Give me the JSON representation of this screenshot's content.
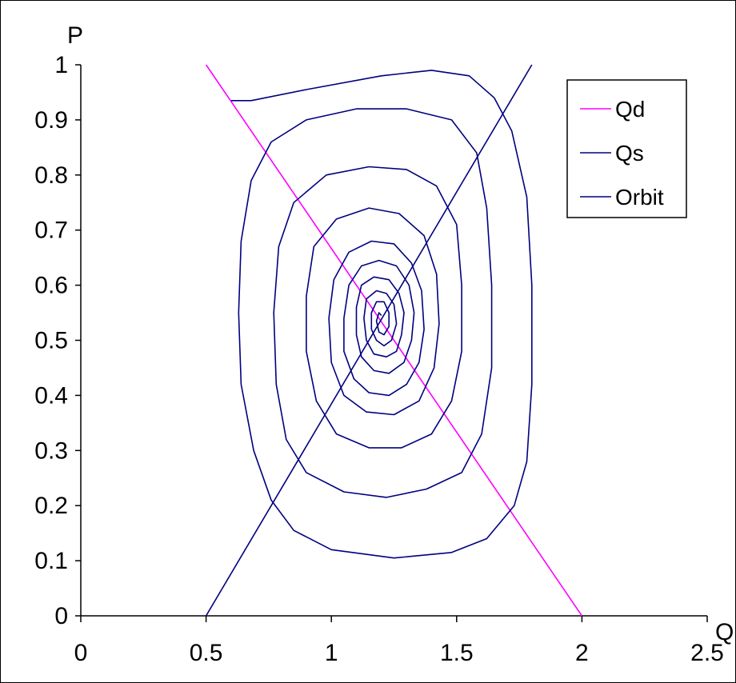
{
  "chart_data": {
    "type": "line",
    "xlabel": "Q",
    "ylabel": "P",
    "xlim": [
      0,
      2.5
    ],
    "ylim": [
      0,
      1
    ],
    "x_ticks": [
      "0",
      "0.5",
      "1",
      "1.5",
      "2",
      "2.5"
    ],
    "y_ticks": [
      "0",
      "0.1",
      "0.2",
      "0.3",
      "0.4",
      "0.5",
      "0.6",
      "0.7",
      "0.8",
      "0.9",
      "1"
    ],
    "grid": false,
    "legend_position": "top-right",
    "series": [
      {
        "name": "Qd",
        "color": "#ff00ff",
        "points": [
          [
            0.5,
            1.0
          ],
          [
            2.0,
            0.0
          ]
        ]
      },
      {
        "name": "Qs",
        "color": "#000080",
        "points": [
          [
            0.5,
            0.0
          ],
          [
            1.8,
            1.0
          ]
        ]
      },
      {
        "name": "Orbit",
        "color": "#000080",
        "points": [
          [
            0.6,
            0.935
          ],
          [
            0.68,
            0.935
          ],
          [
            0.9,
            0.955
          ],
          [
            1.2,
            0.98
          ],
          [
            1.4,
            0.99
          ],
          [
            1.55,
            0.98
          ],
          [
            1.65,
            0.94
          ],
          [
            1.72,
            0.88
          ],
          [
            1.78,
            0.76
          ],
          [
            1.8,
            0.6
          ],
          [
            1.8,
            0.42
          ],
          [
            1.78,
            0.28
          ],
          [
            1.73,
            0.2
          ],
          [
            1.62,
            0.14
          ],
          [
            1.48,
            0.115
          ],
          [
            1.25,
            0.105
          ],
          [
            1.0,
            0.12
          ],
          [
            0.85,
            0.155
          ],
          [
            0.76,
            0.21
          ],
          [
            0.69,
            0.3
          ],
          [
            0.64,
            0.42
          ],
          [
            0.63,
            0.55
          ],
          [
            0.64,
            0.68
          ],
          [
            0.68,
            0.79
          ],
          [
            0.76,
            0.86
          ],
          [
            0.9,
            0.9
          ],
          [
            1.1,
            0.92
          ],
          [
            1.3,
            0.92
          ],
          [
            1.48,
            0.9
          ],
          [
            1.58,
            0.84
          ],
          [
            1.62,
            0.74
          ],
          [
            1.64,
            0.6
          ],
          [
            1.64,
            0.45
          ],
          [
            1.6,
            0.33
          ],
          [
            1.52,
            0.26
          ],
          [
            1.38,
            0.23
          ],
          [
            1.22,
            0.215
          ],
          [
            1.05,
            0.225
          ],
          [
            0.9,
            0.26
          ],
          [
            0.82,
            0.32
          ],
          [
            0.78,
            0.42
          ],
          [
            0.77,
            0.55
          ],
          [
            0.79,
            0.67
          ],
          [
            0.85,
            0.75
          ],
          [
            0.98,
            0.8
          ],
          [
            1.15,
            0.815
          ],
          [
            1.3,
            0.81
          ],
          [
            1.42,
            0.78
          ],
          [
            1.5,
            0.71
          ],
          [
            1.52,
            0.6
          ],
          [
            1.52,
            0.48
          ],
          [
            1.48,
            0.39
          ],
          [
            1.4,
            0.33
          ],
          [
            1.28,
            0.305
          ],
          [
            1.15,
            0.305
          ],
          [
            1.02,
            0.33
          ],
          [
            0.94,
            0.39
          ],
          [
            0.9,
            0.48
          ],
          [
            0.9,
            0.58
          ],
          [
            0.93,
            0.67
          ],
          [
            1.02,
            0.72
          ],
          [
            1.15,
            0.74
          ],
          [
            1.27,
            0.73
          ],
          [
            1.37,
            0.69
          ],
          [
            1.42,
            0.62
          ],
          [
            1.43,
            0.53
          ],
          [
            1.41,
            0.45
          ],
          [
            1.35,
            0.39
          ],
          [
            1.25,
            0.365
          ],
          [
            1.14,
            0.37
          ],
          [
            1.05,
            0.4
          ],
          [
            1.0,
            0.46
          ],
          [
            0.99,
            0.54
          ],
          [
            1.01,
            0.61
          ],
          [
            1.07,
            0.66
          ],
          [
            1.16,
            0.68
          ],
          [
            1.25,
            0.675
          ],
          [
            1.32,
            0.64
          ],
          [
            1.36,
            0.59
          ],
          [
            1.37,
            0.52
          ],
          [
            1.35,
            0.46
          ],
          [
            1.3,
            0.42
          ],
          [
            1.23,
            0.4
          ],
          [
            1.15,
            0.405
          ],
          [
            1.09,
            0.43
          ],
          [
            1.05,
            0.48
          ],
          [
            1.05,
            0.54
          ],
          [
            1.07,
            0.6
          ],
          [
            1.12,
            0.635
          ],
          [
            1.19,
            0.645
          ],
          [
            1.26,
            0.635
          ],
          [
            1.31,
            0.6
          ],
          [
            1.33,
            0.55
          ],
          [
            1.32,
            0.5
          ],
          [
            1.29,
            0.46
          ],
          [
            1.23,
            0.44
          ],
          [
            1.17,
            0.445
          ],
          [
            1.12,
            0.47
          ],
          [
            1.1,
            0.51
          ],
          [
            1.1,
            0.56
          ],
          [
            1.12,
            0.6
          ],
          [
            1.17,
            0.615
          ],
          [
            1.23,
            0.61
          ],
          [
            1.27,
            0.585
          ],
          [
            1.29,
            0.55
          ],
          [
            1.28,
            0.51
          ],
          [
            1.26,
            0.48
          ],
          [
            1.22,
            0.47
          ],
          [
            1.17,
            0.475
          ],
          [
            1.14,
            0.5
          ],
          [
            1.13,
            0.54
          ],
          [
            1.14,
            0.575
          ],
          [
            1.18,
            0.59
          ],
          [
            1.22,
            0.585
          ],
          [
            1.25,
            0.565
          ],
          [
            1.26,
            0.53
          ],
          [
            1.24,
            0.5
          ],
          [
            1.21,
            0.49
          ],
          [
            1.18,
            0.5
          ],
          [
            1.16,
            0.52
          ],
          [
            1.16,
            0.55
          ],
          [
            1.18,
            0.57
          ],
          [
            1.21,
            0.57
          ],
          [
            1.23,
            0.55
          ],
          [
            1.23,
            0.525
          ],
          [
            1.21,
            0.51
          ],
          [
            1.19,
            0.515
          ],
          [
            1.18,
            0.535
          ],
          [
            1.19,
            0.55
          ],
          [
            1.2,
            0.545
          ]
        ]
      }
    ]
  }
}
